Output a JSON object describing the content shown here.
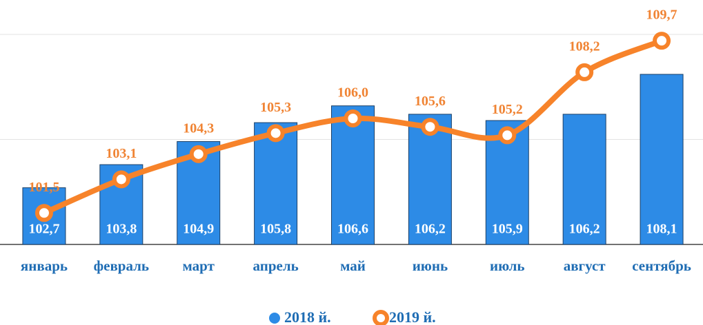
{
  "chart_data": {
    "type": "bar",
    "categories": [
      "январь",
      "февраль",
      "март",
      "апрель",
      "май",
      "июнь",
      "июль",
      "август",
      "сентябрь"
    ],
    "series": [
      {
        "name": "2018 й.",
        "type": "bar",
        "color": "#2d8be6",
        "values": [
          102.7,
          103.8,
          104.9,
          105.8,
          106.6,
          106.2,
          105.9,
          106.2,
          108.1
        ],
        "value_labels": [
          "102,7",
          "103,8",
          "104,9",
          "105,8",
          "106,6",
          "106,2",
          "105,9",
          "106,2",
          "108,1"
        ]
      },
      {
        "name": "2019 й.",
        "type": "line",
        "color": "#f7832a",
        "values": [
          101.5,
          103.1,
          104.3,
          105.3,
          106.0,
          105.6,
          105.2,
          108.2,
          109.7
        ],
        "value_labels": [
          "101,5",
          "103,1",
          "104,3",
          "105,3",
          "106,0",
          "105,6",
          "105,2",
          "108,2",
          "109,7"
        ]
      }
    ],
    "ylim": [
      100,
      110
    ],
    "yticks": [
      100,
      105,
      110
    ],
    "grid": true,
    "legend": "bottom"
  }
}
